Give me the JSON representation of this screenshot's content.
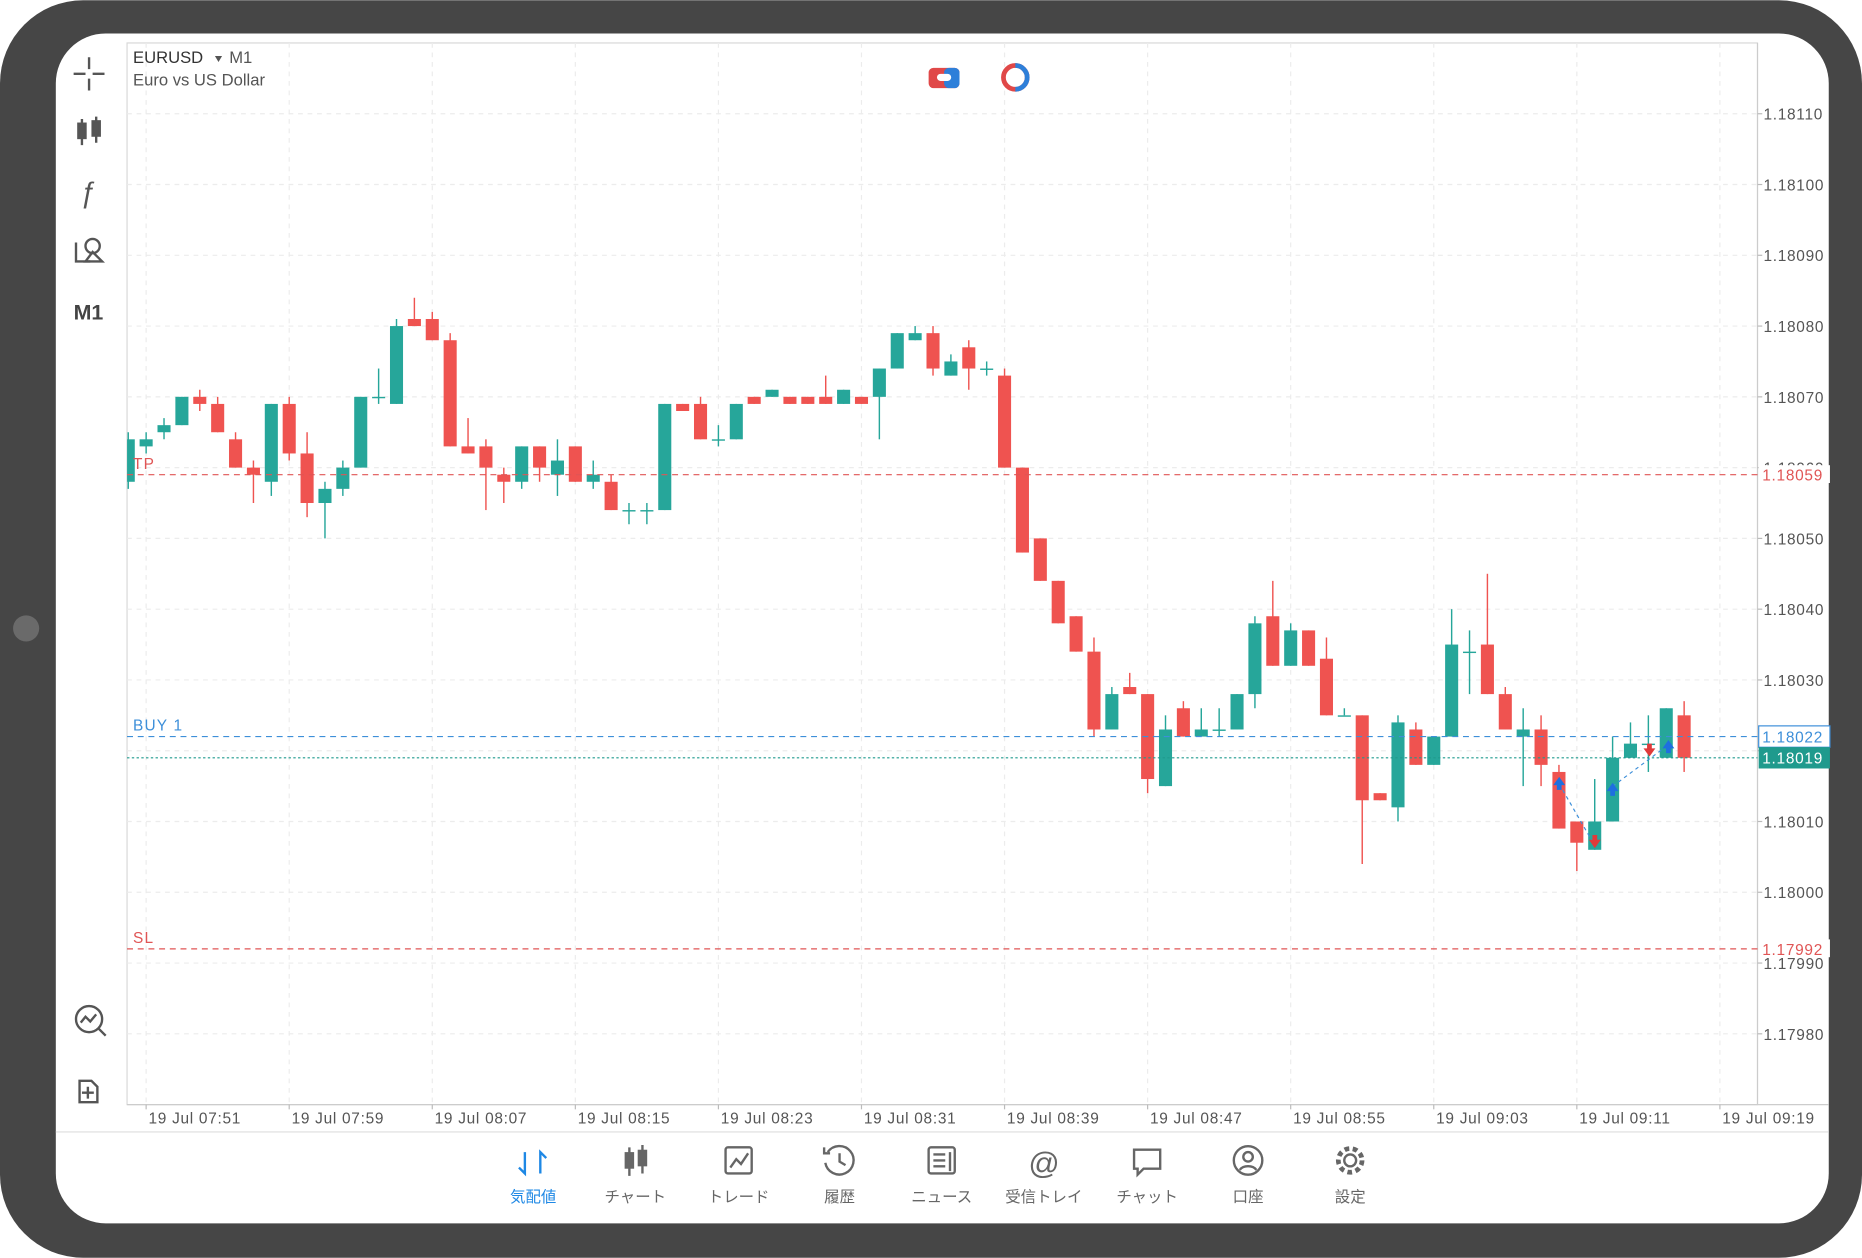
{
  "header": {
    "symbol": "EURUSD",
    "timeframe": "M1",
    "description": "Euro vs US Dollar"
  },
  "sidebar": {
    "timeframe": "M1"
  },
  "chart_data": {
    "type": "candlestick",
    "up_color": "#26a69a",
    "down_color": "#ef5350",
    "ohlc": [
      [
        1.18058,
        1.18065,
        1.18057,
        1.18064
      ],
      [
        1.18063,
        1.18065,
        1.18062,
        1.18064
      ],
      [
        1.18065,
        1.18067,
        1.18064,
        1.18066
      ],
      [
        1.18066,
        1.1807,
        1.18066,
        1.1807
      ],
      [
        1.1807,
        1.18071,
        1.18068,
        1.18069
      ],
      [
        1.18069,
        1.1807,
        1.18065,
        1.18065
      ],
      [
        1.18064,
        1.18065,
        1.1806,
        1.1806
      ],
      [
        1.1806,
        1.18061,
        1.18055,
        1.18059
      ],
      [
        1.18058,
        1.18069,
        1.18056,
        1.18069
      ],
      [
        1.18069,
        1.1807,
        1.18061,
        1.18062
      ],
      [
        1.18062,
        1.18065,
        1.18053,
        1.18055
      ],
      [
        1.18055,
        1.18058,
        1.1805,
        1.18057
      ],
      [
        1.18057,
        1.18061,
        1.18056,
        1.1806
      ],
      [
        1.1806,
        1.1807,
        1.1806,
        1.1807
      ],
      [
        1.1807,
        1.18074,
        1.18069,
        1.1807
      ],
      [
        1.18069,
        1.18081,
        1.18069,
        1.1808
      ],
      [
        1.18081,
        1.18084,
        1.1808,
        1.1808
      ],
      [
        1.18081,
        1.18082,
        1.18078,
        1.18078
      ],
      [
        1.18078,
        1.18079,
        1.18063,
        1.18063
      ],
      [
        1.18063,
        1.18067,
        1.18062,
        1.18062
      ],
      [
        1.18063,
        1.18064,
        1.18054,
        1.1806
      ],
      [
        1.18059,
        1.1806,
        1.18055,
        1.18058
      ],
      [
        1.18058,
        1.18063,
        1.18057,
        1.18063
      ],
      [
        1.18063,
        1.18063,
        1.18058,
        1.1806
      ],
      [
        1.18059,
        1.18064,
        1.18056,
        1.18061
      ],
      [
        1.18063,
        1.18063,
        1.18058,
        1.18058
      ],
      [
        1.18058,
        1.18061,
        1.18057,
        1.18059
      ],
      [
        1.18058,
        1.18059,
        1.18054,
        1.18054
      ],
      [
        1.18054,
        1.18055,
        1.18052,
        1.18054
      ],
      [
        1.18054,
        1.18055,
        1.18052,
        1.18054
      ],
      [
        1.18054,
        1.18069,
        1.18054,
        1.18069
      ],
      [
        1.18069,
        1.18069,
        1.18068,
        1.18068
      ],
      [
        1.18069,
        1.1807,
        1.18064,
        1.18064
      ],
      [
        1.18064,
        1.18066,
        1.18063,
        1.18064
      ],
      [
        1.18064,
        1.18069,
        1.18064,
        1.18069
      ],
      [
        1.1807,
        1.1807,
        1.18069,
        1.18069
      ],
      [
        1.1807,
        1.18071,
        1.1807,
        1.18071
      ],
      [
        1.1807,
        1.1807,
        1.18069,
        1.18069
      ],
      [
        1.1807,
        1.1807,
        1.18069,
        1.18069
      ],
      [
        1.1807,
        1.18073,
        1.18069,
        1.18069
      ],
      [
        1.18069,
        1.18071,
        1.18069,
        1.18071
      ],
      [
        1.1807,
        1.1807,
        1.18069,
        1.18069
      ],
      [
        1.1807,
        1.18074,
        1.18064,
        1.18074
      ],
      [
        1.18074,
        1.18079,
        1.18074,
        1.18079
      ],
      [
        1.18078,
        1.1808,
        1.18078,
        1.18079
      ],
      [
        1.18079,
        1.1808,
        1.18073,
        1.18074
      ],
      [
        1.18073,
        1.18076,
        1.18073,
        1.18075
      ],
      [
        1.18077,
        1.18078,
        1.18071,
        1.18074
      ],
      [
        1.18074,
        1.18075,
        1.18073,
        1.18074
      ],
      [
        1.18073,
        1.18074,
        1.1806,
        1.1806
      ],
      [
        1.1806,
        1.1806,
        1.18048,
        1.18048
      ],
      [
        1.1805,
        1.1805,
        1.18044,
        1.18044
      ],
      [
        1.18044,
        1.18044,
        1.18038,
        1.18038
      ],
      [
        1.18039,
        1.18039,
        1.18034,
        1.18034
      ],
      [
        1.18034,
        1.18036,
        1.18022,
        1.18023
      ],
      [
        1.18023,
        1.18029,
        1.18023,
        1.18028
      ],
      [
        1.18029,
        1.18031,
        1.18028,
        1.18028
      ],
      [
        1.18028,
        1.18028,
        1.18014,
        1.18016
      ],
      [
        1.18015,
        1.18025,
        1.18015,
        1.18023
      ],
      [
        1.18026,
        1.18027,
        1.18022,
        1.18022
      ],
      [
        1.18022,
        1.18026,
        1.18022,
        1.18023
      ],
      [
        1.18023,
        1.18026,
        1.18022,
        1.18023
      ],
      [
        1.18023,
        1.18028,
        1.18023,
        1.18028
      ],
      [
        1.18028,
        1.18039,
        1.18026,
        1.18038
      ],
      [
        1.18039,
        1.18044,
        1.18032,
        1.18032
      ],
      [
        1.18032,
        1.18038,
        1.18032,
        1.18037
      ],
      [
        1.18037,
        1.18037,
        1.18032,
        1.18032
      ],
      [
        1.18033,
        1.18036,
        1.18025,
        1.18025
      ],
      [
        1.18025,
        1.18026,
        1.18025,
        1.18025
      ],
      [
        1.18025,
        1.18025,
        1.18004,
        1.18013
      ],
      [
        1.18014,
        1.18014,
        1.18013,
        1.18013
      ],
      [
        1.18012,
        1.18025,
        1.1801,
        1.18024
      ],
      [
        1.18023,
        1.18024,
        1.18018,
        1.18018
      ],
      [
        1.18018,
        1.18022,
        1.18018,
        1.18022
      ],
      [
        1.18022,
        1.1804,
        1.18022,
        1.18035
      ],
      [
        1.18034,
        1.18037,
        1.18028,
        1.18034
      ],
      [
        1.18035,
        1.18045,
        1.18028,
        1.18028
      ],
      [
        1.18028,
        1.18029,
        1.18023,
        1.18023
      ],
      [
        1.18022,
        1.18026,
        1.18015,
        1.18023
      ],
      [
        1.18023,
        1.18025,
        1.18015,
        1.18018
      ],
      [
        1.18017,
        1.18018,
        1.18009,
        1.18009
      ],
      [
        1.1801,
        1.1801,
        1.18003,
        1.18007
      ],
      [
        1.18006,
        1.18016,
        1.18006,
        1.1801
      ],
      [
        1.1801,
        1.18022,
        1.1801,
        1.18019
      ],
      [
        1.18019,
        1.18024,
        1.18019,
        1.18021
      ],
      [
        1.18021,
        1.18025,
        1.18017,
        1.18021
      ],
      [
        1.18019,
        1.18026,
        1.18019,
        1.18026
      ],
      [
        1.18025,
        1.18027,
        1.18017,
        1.18019
      ]
    ],
    "ylim": [
      1.1797,
      1.1812
    ],
    "yticks": [
      {
        "value": 1.1798,
        "label": "1.17980"
      },
      {
        "value": 1.1799,
        "label": "1.17990"
      },
      {
        "value": 1.18,
        "label": "1.18000"
      },
      {
        "value": 1.1801,
        "label": "1.18010"
      },
      {
        "value": 1.1802,
        "label": "1.18020"
      },
      {
        "value": 1.1803,
        "label": "1.18030"
      },
      {
        "value": 1.1804,
        "label": "1.18040"
      },
      {
        "value": 1.1805,
        "label": "1.18050"
      },
      {
        "value": 1.1806,
        "label": "1.18060"
      },
      {
        "value": 1.1807,
        "label": "1.18070"
      },
      {
        "value": 1.1808,
        "label": "1.18080"
      },
      {
        "value": 1.1809,
        "label": "1.18090"
      },
      {
        "value": 1.181,
        "label": "1.18100"
      },
      {
        "value": 1.1811,
        "label": "1.18110"
      }
    ],
    "xticks": [
      "19 Jul 07:51",
      "19 Jul 07:59",
      "19 Jul 08:07",
      "19 Jul 08:15",
      "19 Jul 08:23",
      "19 Jul 08:31",
      "19 Jul 08:39",
      "19 Jul 08:47",
      "19 Jul 08:55",
      "19 Jul 09:03",
      "19 Jul 09:11",
      "19 Jul 09:19"
    ],
    "grid": true,
    "levels": [
      {
        "name": "TP",
        "value": 1.18059,
        "color": "#e05555",
        "style": "text"
      },
      {
        "name": "BUY 1",
        "value": 1.18022,
        "color": "#3d8fd9",
        "style": "outline"
      },
      {
        "value": 1.18019,
        "color": "#1f9a8d",
        "style": "filled"
      },
      {
        "name": "SL",
        "value": 1.17992,
        "color": "#e05555",
        "style": "text"
      }
    ]
  },
  "nav": {
    "items": [
      "気配値",
      "チャート",
      "トレード",
      "履歴",
      "ニュース",
      "受信トレイ",
      "チャット",
      "口座",
      "設定"
    ],
    "active": 0,
    "active_color": "#1e88e5",
    "color": "#666666"
  }
}
